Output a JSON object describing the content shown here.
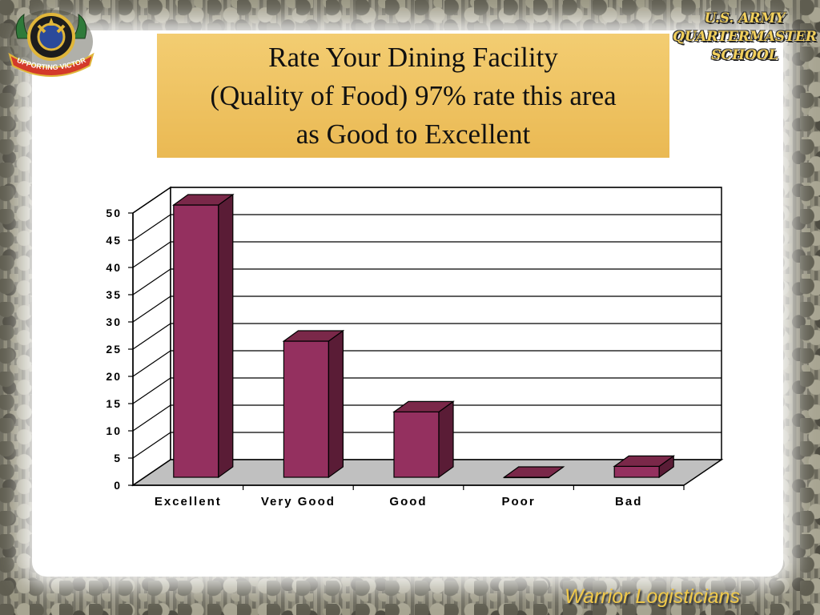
{
  "slide": {
    "title_lines": [
      "Rate Your Dining Facility",
      "(Quality of Food) 97% rate this area",
      "as Good to Excellent"
    ],
    "school_lines": [
      "U.S. ARMY",
      "QUARTERMASTER",
      "SCHOOL"
    ],
    "logo_text": "SUPPORTING VICTORY",
    "footer": "Warrior Logisticians"
  },
  "colors": {
    "bar": "#94305f",
    "bar_side": "#5a1c36",
    "bar_top": "#7a2849",
    "floor": "#c0c0c0",
    "title_bg": "#f0c463"
  },
  "chart_data": {
    "type": "bar",
    "categories": [
      "Excellent",
      "Very Good",
      "Good",
      "Poor",
      "Bad"
    ],
    "values": [
      50,
      25,
      12,
      0,
      2
    ],
    "ylim": [
      0,
      50
    ],
    "yticks": [
      0,
      5,
      10,
      15,
      20,
      25,
      30,
      35,
      40,
      45,
      50
    ],
    "grid": true,
    "legend": "none",
    "three_d": true
  }
}
